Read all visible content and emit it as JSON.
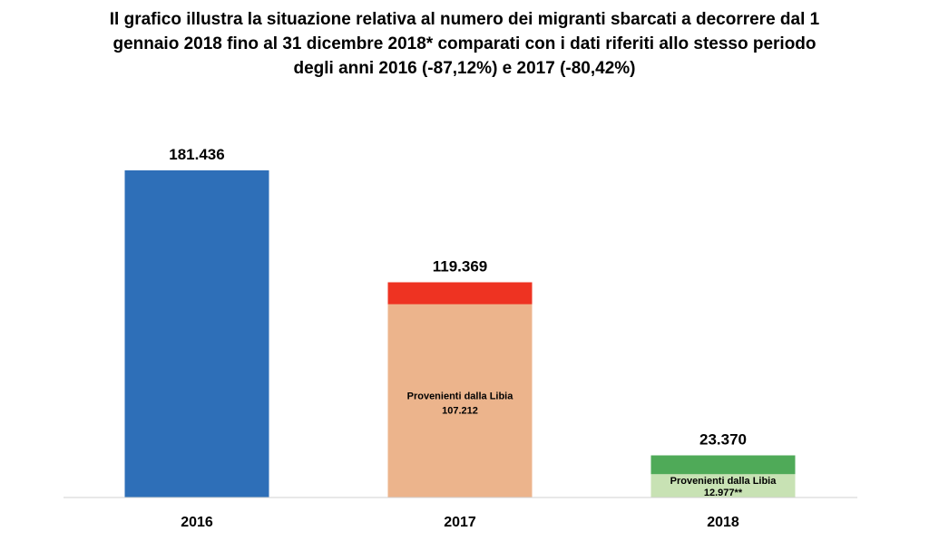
{
  "title_lines": [
    "Il grafico illustra la situazione relativa al numero dei migranti sbarcati a decorrere dal 1",
    "gennaio 2018 fino al 31 dicembre 2018* comparati con i dati riferiti allo stesso periodo",
    "degli anni 2016 (-87,12%) e 2017 (-80,42%)"
  ],
  "chart_data": {
    "type": "bar",
    "title": "Il grafico illustra la situazione relativa al numero dei migranti sbarcati a decorrere dal 1 gennaio 2018 fino al 31 dicembre 2018* comparati con i dati riferiti allo stesso periodo degli anni 2016 (-87,12%) e 2017 (-80,42%)",
    "categories": [
      "2016",
      "2017",
      "2018"
    ],
    "ylim": [
      0,
      181436
    ],
    "xlabel": "",
    "ylabel": "",
    "bars": [
      {
        "category": "2016",
        "total": 181436,
        "total_label": "181.436",
        "color": "#2E6FB8",
        "libya": null
      },
      {
        "category": "2017",
        "total": 119369,
        "total_label": "119.369",
        "color": "#EE3322",
        "libya": {
          "value": 107212,
          "label_line1": "Provenienti dalla Libia",
          "label_line2": "107.212",
          "color": "#ECB48C"
        }
      },
      {
        "category": "2018",
        "total": 23370,
        "total_label": "23.370",
        "color": "#4FAA58",
        "libya": {
          "value": 12977,
          "label_line1": "Provenienti dalla Libia",
          "label_line2": "12.977**",
          "color": "#C8E2B4"
        }
      }
    ],
    "grid": false,
    "legend": "none"
  }
}
